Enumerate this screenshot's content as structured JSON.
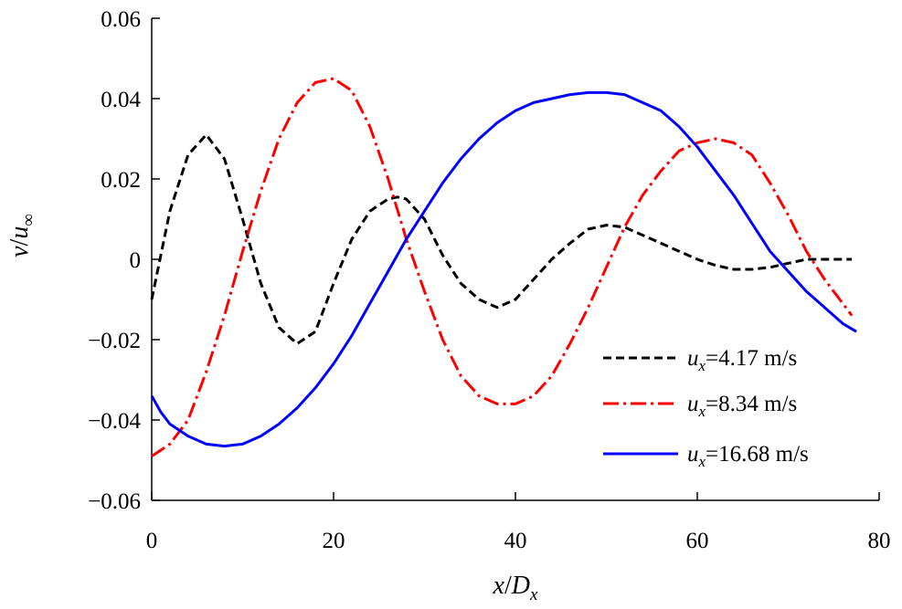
{
  "chart_data": {
    "type": "line",
    "xlim": [
      0,
      80
    ],
    "ylim": [
      -0.06,
      0.06
    ],
    "x_ticks": [
      "0",
      "20",
      "40",
      "60",
      "80"
    ],
    "x_tick_values": [
      0,
      20,
      40,
      60,
      80
    ],
    "y_ticks": [
      "0.06",
      "0.04",
      "0.02",
      "0",
      "−0.02",
      "−0.04",
      "−0.06"
    ],
    "y_tick_values": [
      0.06,
      0.04,
      0.02,
      0,
      -0.02,
      -0.04,
      -0.06
    ],
    "xlabel": {
      "var": "x",
      "sep": "/",
      "denom": "D",
      "sub": "x"
    },
    "ylabel": {
      "var": "v",
      "sep": "/",
      "denom": "u",
      "sub": "∞"
    },
    "grid": false,
    "legend_position": "bottom-right",
    "series": [
      {
        "name": "u_x=4.17 m/s",
        "legend": {
          "var": "u",
          "sub": "x",
          "text": "=4.17 m/s"
        },
        "color": "#000000",
        "style": "dashed",
        "x": [
          0,
          2,
          4,
          6,
          8,
          10,
          12,
          14,
          16,
          18,
          20,
          22,
          24,
          26,
          27,
          28,
          30,
          32,
          34,
          36,
          38,
          40,
          42,
          44,
          46,
          48,
          50,
          52,
          54,
          56,
          58,
          60,
          62,
          64,
          66,
          68,
          70,
          72,
          74,
          76,
          77
        ],
        "y": [
          -0.01,
          0.012,
          0.026,
          0.031,
          0.025,
          0.01,
          -0.006,
          -0.017,
          -0.021,
          -0.018,
          -0.006,
          0.005,
          0.012,
          0.015,
          0.0155,
          0.015,
          0.01,
          0.001,
          -0.006,
          -0.01,
          -0.012,
          -0.01,
          -0.005,
          0.0,
          0.004,
          0.0075,
          0.0085,
          0.008,
          0.006,
          0.004,
          0.002,
          0.0,
          -0.0015,
          -0.0025,
          -0.0025,
          -0.002,
          -0.001,
          0.0,
          0.0,
          0.0,
          0.0
        ]
      },
      {
        "name": "u_x=8.34 m/s",
        "legend": {
          "var": "u",
          "sub": "x",
          "text": "=8.34 m/s"
        },
        "color": "#ff0000",
        "style": "dashdot",
        "x": [
          0,
          2,
          4,
          6,
          8,
          10,
          12,
          14,
          16,
          18,
          20,
          22,
          24,
          26,
          28,
          30,
          32,
          34,
          36,
          38,
          40,
          42,
          44,
          46,
          48,
          50,
          52,
          54,
          56,
          58,
          60,
          62,
          64,
          66,
          68,
          70,
          72,
          74,
          76,
          77
        ],
        "y": [
          -0.049,
          -0.046,
          -0.04,
          -0.028,
          -0.014,
          0.002,
          0.017,
          0.03,
          0.039,
          0.044,
          0.045,
          0.042,
          0.033,
          0.02,
          0.005,
          -0.008,
          -0.02,
          -0.029,
          -0.034,
          -0.036,
          -0.036,
          -0.034,
          -0.029,
          -0.021,
          -0.012,
          -0.002,
          0.008,
          0.016,
          0.022,
          0.027,
          0.029,
          0.03,
          0.029,
          0.026,
          0.019,
          0.011,
          0.002,
          -0.005,
          -0.011,
          -0.014
        ]
      },
      {
        "name": "u_x=16.68 m/s",
        "legend": {
          "var": "u",
          "sub": "x",
          "text": "=16.68 m/s"
        },
        "color": "#0000ff",
        "style": "solid",
        "x": [
          0,
          1,
          2,
          4,
          6,
          8,
          10,
          12,
          14,
          16,
          18,
          20,
          22,
          24,
          26,
          28,
          30,
          32,
          34,
          36,
          38,
          40,
          42,
          44,
          46,
          48,
          50,
          52,
          54,
          56,
          58,
          60,
          62,
          64,
          66,
          68,
          70,
          72,
          74,
          76,
          77.5
        ],
        "y": [
          -0.034,
          -0.038,
          -0.041,
          -0.044,
          -0.046,
          -0.0465,
          -0.046,
          -0.044,
          -0.041,
          -0.037,
          -0.032,
          -0.026,
          -0.019,
          -0.011,
          -0.003,
          0.005,
          0.012,
          0.019,
          0.025,
          0.03,
          0.034,
          0.037,
          0.039,
          0.04,
          0.041,
          0.0415,
          0.0415,
          0.041,
          0.039,
          0.037,
          0.033,
          0.028,
          0.022,
          0.016,
          0.009,
          0.002,
          -0.003,
          -0.008,
          -0.012,
          -0.016,
          -0.018
        ]
      }
    ]
  }
}
